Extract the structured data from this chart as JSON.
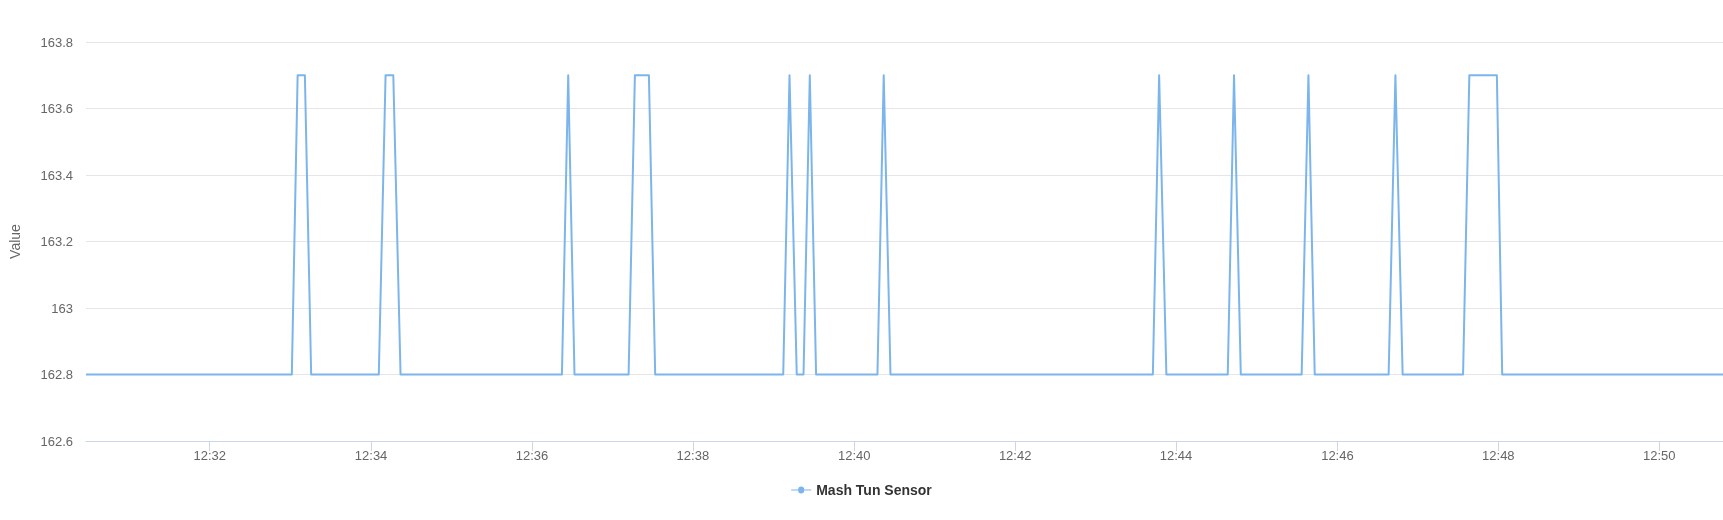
{
  "chart_data": {
    "type": "line",
    "ylabel": "Value",
    "legend": "bottom",
    "grid": "y",
    "marker": "none",
    "line_style": "solid",
    "x": [
      12.5077,
      12.5503,
      12.5515,
      12.553,
      12.5543,
      12.5683,
      12.5697,
      12.5713,
      12.5728,
      12.6062,
      12.6075,
      12.6088,
      12.62,
      12.6213,
      12.6242,
      12.6255,
      12.652,
      12.6533,
      12.6548,
      12.6562,
      12.6575,
      12.6588,
      12.6715,
      12.6728,
      12.6742,
      12.7285,
      12.7298,
      12.7313,
      12.744,
      12.7453,
      12.7467,
      12.7593,
      12.7607,
      12.762,
      12.7773,
      12.7787,
      12.7802,
      12.7927,
      12.794,
      12.7997,
      12.8008,
      12.8465
    ],
    "series": [
      {
        "name": "Mash Tun Sensor",
        "color": "#7cb5ec",
        "values": [
          162.8,
          162.8,
          163.7,
          163.7,
          162.8,
          162.8,
          163.7,
          163.7,
          162.8,
          162.8,
          163.7,
          162.8,
          162.8,
          163.7,
          163.7,
          162.8,
          162.8,
          163.7,
          162.8,
          162.8,
          163.7,
          162.8,
          162.8,
          163.7,
          162.8,
          162.8,
          163.7,
          162.8,
          162.8,
          163.7,
          162.8,
          162.8,
          163.7,
          162.8,
          162.8,
          163.7,
          162.8,
          162.8,
          163.7,
          163.7,
          162.8,
          162.8
        ]
      }
    ],
    "xlim": [
      12.5077,
      12.8465
    ],
    "xticks": [
      {
        "value": 12.5333,
        "label": "12:32"
      },
      {
        "value": 12.5667,
        "label": "12:34"
      },
      {
        "value": 12.6,
        "label": "12:36"
      },
      {
        "value": 12.6333,
        "label": "12:38"
      },
      {
        "value": 12.6667,
        "label": "12:40"
      },
      {
        "value": 12.7,
        "label": "12:42"
      },
      {
        "value": 12.7333,
        "label": "12:44"
      },
      {
        "value": 12.7667,
        "label": "12:46"
      },
      {
        "value": 12.8,
        "label": "12:48"
      },
      {
        "value": 12.8333,
        "label": "12:50"
      }
    ],
    "ylim": [
      162.6,
      163.8
    ],
    "yticks": [
      162.6,
      162.8,
      163,
      163.2,
      163.4,
      163.6,
      163.8
    ]
  }
}
